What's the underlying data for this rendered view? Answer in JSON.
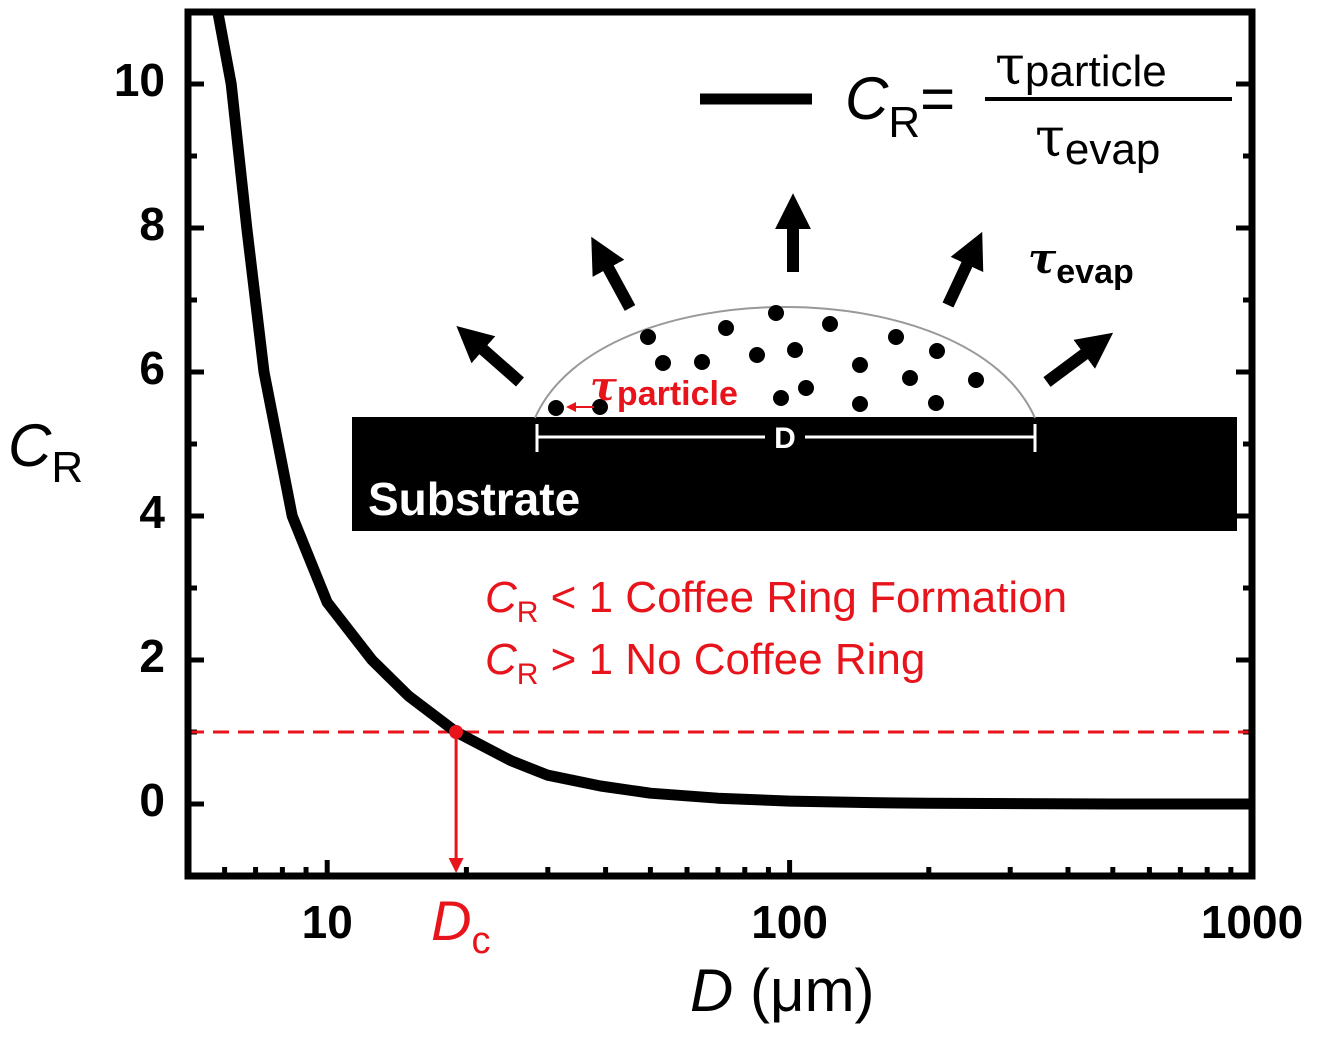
{
  "chart_data": {
    "type": "line",
    "x_label": {
      "symbol": "D",
      "unit": " (μm)"
    },
    "y_label": {
      "symbol": "C",
      "subscript": "R"
    },
    "x": [
      5.8,
      6.2,
      6.7,
      7.3,
      8.4,
      10,
      12.5,
      15,
      19,
      25,
      30,
      39,
      50,
      70,
      100,
      150,
      200,
      500,
      1000
    ],
    "values": [
      11,
      10,
      8,
      6,
      4,
      2.8,
      2,
      1.5,
      1,
      0.6,
      0.4,
      0.25,
      0.15,
      0.08,
      0.04,
      0.02,
      0.01,
      0,
      0
    ],
    "color": "#000000",
    "xlog": true,
    "xlim": [
      5,
      1000
    ],
    "ylim": [
      -1,
      11
    ],
    "xticks": [
      10,
      100,
      1000
    ],
    "yticks": [
      0,
      2,
      4,
      6,
      8,
      10
    ],
    "xminorticks": [
      6,
      7,
      8,
      9,
      20,
      30,
      40,
      50,
      60,
      70,
      80,
      90,
      200,
      300,
      400,
      500,
      600,
      700,
      800,
      900
    ],
    "yminorticks": [
      1,
      3,
      5,
      7,
      9
    ],
    "threshold": {
      "y": 1,
      "color": "#e8141c"
    },
    "critical_point": {
      "x": 19,
      "y": 1,
      "symbol": "D",
      "subscript": "c"
    },
    "legend": {
      "symbol": "C",
      "subscript": "R",
      "equals": "=",
      "numerator": {
        "symbol": "τ",
        "subscript": "particle"
      },
      "denominator": {
        "symbol": "τ",
        "subscript": "evap"
      }
    },
    "annotations": [
      {
        "symbol": "C",
        "subscript": "R",
        "text": " < 1 Coffee Ring Formation"
      },
      {
        "symbol": "C",
        "subscript": "R",
        "text": " > 1 No Coffee Ring"
      }
    ],
    "inset": {
      "substrate": "Substrate",
      "width_label": "D",
      "particle": {
        "symbol": "τ",
        "subscript": "particle"
      },
      "evap": {
        "symbol": "τ",
        "subscript": "evap"
      }
    }
  }
}
